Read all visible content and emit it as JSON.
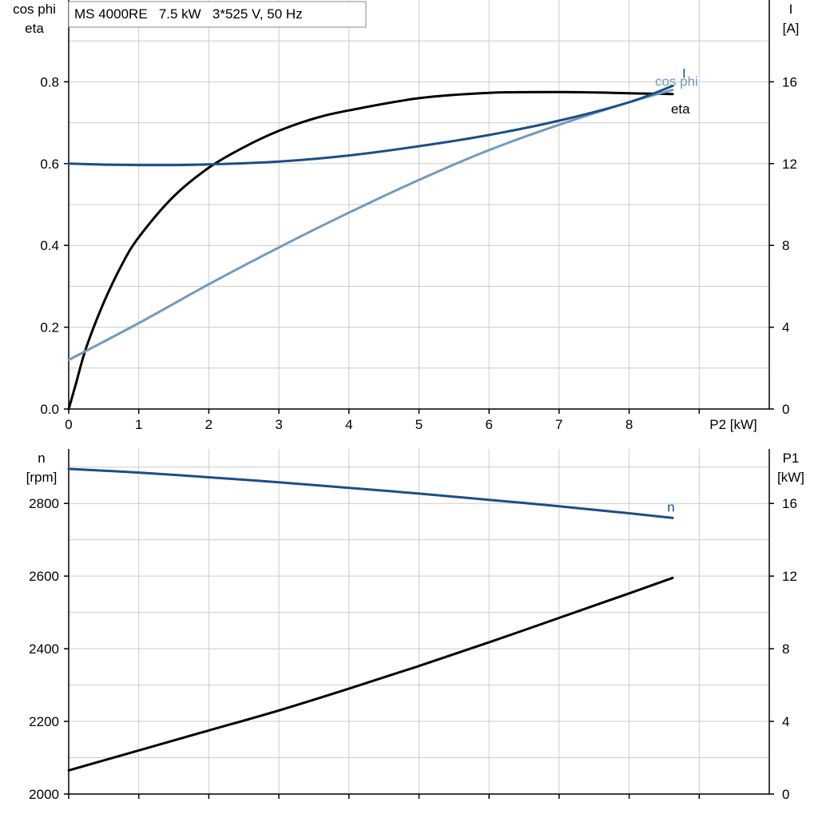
{
  "chart_data": [
    {
      "type": "line",
      "title": "MS 4000RE   7.5 kW   3*525 V, 50 Hz",
      "xlabel": "P2 [kW]",
      "ylabel_left": [
        "cos phi",
        "eta"
      ],
      "ylabel_right": [
        "I",
        "[A]"
      ],
      "xlim": [
        0,
        10
      ],
      "ylim_left": [
        0,
        1.0
      ],
      "ylim_right": [
        0,
        20
      ],
      "x_ticks": [
        0,
        1,
        2,
        3,
        4,
        5,
        6,
        7,
        8
      ],
      "y_ticks_left": [
        0.0,
        0.2,
        0.4,
        0.6,
        0.8
      ],
      "y_ticks_left_labels": [
        "0.0",
        "0.2",
        "0.4",
        "0.6",
        "0.8"
      ],
      "y_ticks_right": [
        0,
        4,
        8,
        12,
        16
      ],
      "grid": true,
      "series": [
        {
          "name": "eta",
          "axis": "left",
          "color": "#000000",
          "x": [
            0,
            0.1,
            0.25,
            0.5,
            0.75,
            1,
            1.5,
            2,
            2.5,
            3,
            3.5,
            4,
            5,
            6,
            7,
            7.5,
            8,
            8.3,
            8.62
          ],
          "y": [
            0,
            0.06,
            0.15,
            0.26,
            0.35,
            0.42,
            0.52,
            0.59,
            0.64,
            0.68,
            0.71,
            0.73,
            0.76,
            0.773,
            0.775,
            0.774,
            0.772,
            0.771,
            0.77
          ]
        },
        {
          "name": "cos phi",
          "axis": "left",
          "color": "#7399bd",
          "x": [
            0,
            1,
            2,
            3,
            4,
            5,
            6,
            7,
            8,
            8.62
          ],
          "y": [
            0.12,
            0.21,
            0.305,
            0.395,
            0.48,
            0.56,
            0.633,
            0.695,
            0.75,
            0.78
          ]
        },
        {
          "name": "I",
          "axis": "right",
          "color": "#1b4f86",
          "x": [
            0,
            0.5,
            1,
            1.5,
            2,
            3,
            4,
            5,
            6,
            7,
            8,
            8.62
          ],
          "y": [
            12.0,
            11.95,
            11.93,
            11.93,
            11.96,
            12.1,
            12.4,
            12.85,
            13.4,
            14.1,
            15.0,
            15.8
          ]
        }
      ]
    },
    {
      "type": "line",
      "title": "",
      "xlabel": "",
      "ylabel_left": [
        "n",
        "[rpm]"
      ],
      "ylabel_right": [
        "P1",
        "[kW]"
      ],
      "xlim": [
        0,
        10
      ],
      "ylim_left": [
        2000,
        2950
      ],
      "ylim_right": [
        0,
        19
      ],
      "y_ticks_left": [
        2000,
        2200,
        2400,
        2600,
        2800
      ],
      "y_ticks_right": [
        0,
        4,
        8,
        12,
        16
      ],
      "grid": true,
      "series": [
        {
          "name": "n",
          "axis": "left",
          "color": "#1b4f86",
          "x": [
            0,
            1,
            2,
            3,
            4,
            5,
            6,
            7,
            8,
            8.62
          ],
          "y": [
            2895,
            2885,
            2872,
            2858,
            2843,
            2827,
            2810,
            2792,
            2773,
            2760
          ]
        },
        {
          "name": "",
          "axis": "right",
          "color": "#000000",
          "x": [
            0,
            1,
            2,
            3,
            4,
            5,
            6,
            7,
            8,
            8.62
          ],
          "y": [
            1.3,
            2.4,
            3.5,
            4.6,
            5.8,
            7.05,
            8.35,
            9.7,
            11.05,
            11.9
          ]
        }
      ]
    }
  ]
}
